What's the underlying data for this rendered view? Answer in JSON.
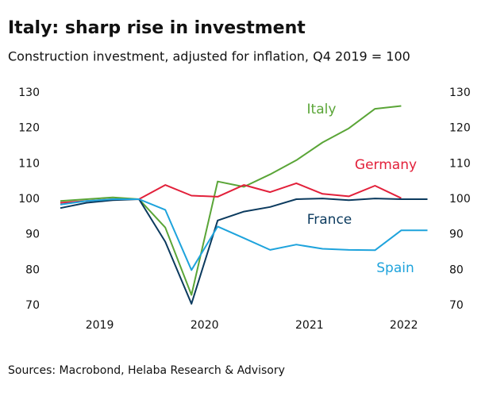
{
  "chart_data": {
    "type": "line",
    "title": "Italy: sharp rise in investment",
    "subtitle": "Construction investment, adjusted for inflation, Q4 2019 = 100",
    "source": "Sources: Macrobond, Helaba Research & Advisory",
    "x": [
      2019.125,
      2019.375,
      2019.625,
      2019.875,
      2020.125,
      2020.375,
      2020.625,
      2020.875,
      2021.125,
      2021.375,
      2021.625,
      2021.875,
      2022.125,
      2022.375,
      2022.625
    ],
    "xlim": [
      2019.0,
      2022.75
    ],
    "xticks": [
      {
        "value": 2019.5,
        "label": "2019"
      },
      {
        "value": 2020.5,
        "label": "2020"
      },
      {
        "value": 2021.5,
        "label": "2021"
      },
      {
        "value": 2022.4,
        "label": "2022"
      }
    ],
    "ylim": [
      70,
      130
    ],
    "yticks": [
      70,
      80,
      90,
      100,
      110,
      120,
      130
    ],
    "grid": false,
    "series": [
      {
        "name": "Italy",
        "color": "#5aa537",
        "values": [
          99.5,
          100,
          100.5,
          100,
          92,
          73,
          105,
          103.5,
          107,
          111,
          116,
          120,
          125.5,
          126.3,
          null
        ]
      },
      {
        "name": "Germany",
        "color": "#e2203a",
        "values": [
          99,
          99.5,
          100,
          100,
          104,
          101,
          100.7,
          104,
          102,
          104.5,
          101.5,
          100.8,
          103.8,
          100.3,
          null
        ]
      },
      {
        "name": "France",
        "color": "#0b3a5e",
        "values": [
          97.5,
          99,
          99.7,
          100,
          88,
          70.5,
          94,
          96.5,
          97.8,
          100,
          100.2,
          99.7,
          100.2,
          100,
          100
        ]
      },
      {
        "name": "Spain",
        "color": "#1ea3dc",
        "values": [
          98.5,
          99.5,
          100,
          100,
          97,
          80,
          92.3,
          89,
          85.7,
          87.2,
          86,
          85.7,
          85.6,
          91.2,
          91.2
        ]
      }
    ]
  }
}
